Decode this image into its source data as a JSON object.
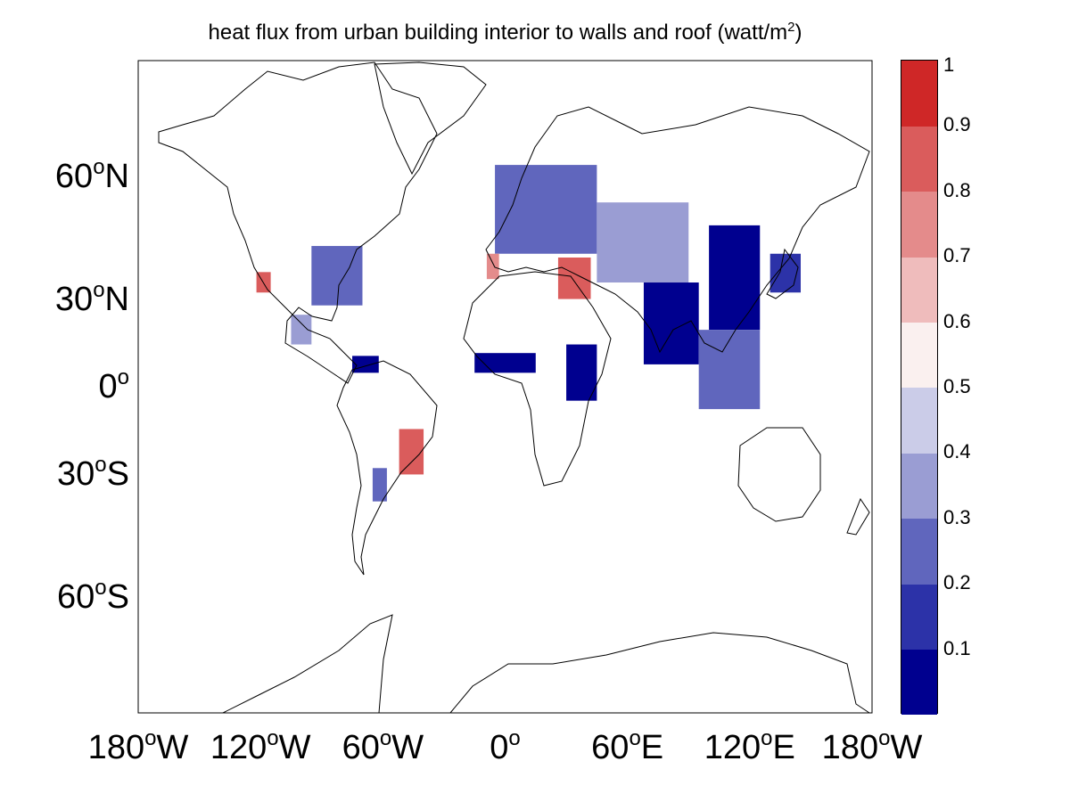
{
  "title": {
    "text": "heat flux from urban building interior to walls and roof (watt/m",
    "sup": "2",
    "close": ")"
  },
  "lat_ticks": [
    {
      "deg": "60",
      "sup": "o",
      "hem": "N",
      "lat": 60
    },
    {
      "deg": "30",
      "sup": "o",
      "hem": "N",
      "lat": 30
    },
    {
      "deg": "0",
      "sup": "o",
      "hem": "",
      "lat": 0
    },
    {
      "deg": "30",
      "sup": "o",
      "hem": "S",
      "lat": -30
    },
    {
      "deg": "60",
      "sup": "o",
      "hem": "S",
      "lat": -60
    }
  ],
  "lon_ticks": [
    {
      "deg": "180",
      "sup": "o",
      "hem": "W",
      "lon": -180
    },
    {
      "deg": "120",
      "sup": "o",
      "hem": "W",
      "lon": -120
    },
    {
      "deg": "60",
      "sup": "o",
      "hem": "W",
      "lon": -60
    },
    {
      "deg": "0",
      "sup": "o",
      "hem": "",
      "lon": 0
    },
    {
      "deg": "60",
      "sup": "o",
      "hem": "E",
      "lon": 60
    },
    {
      "deg": "120",
      "sup": "o",
      "hem": "E",
      "lon": 120
    },
    {
      "deg": "180",
      "sup": "o",
      "hem": "W",
      "lon": 180
    }
  ],
  "colorbar": {
    "min": 0,
    "max": 1,
    "tick_labels": [
      "0.1",
      "0.2",
      "0.3",
      "0.4",
      "0.5",
      "0.6",
      "0.7",
      "0.8",
      "0.9",
      "1"
    ],
    "colors": [
      "#00008f",
      "#2c32a8",
      "#6066bd",
      "#9a9dd3",
      "#cbcce8",
      "#faf0ef",
      "#efbcbc",
      "#e48b8b",
      "#da5c5c",
      "#cf2727"
    ]
  },
  "field_regions": [
    {
      "name": "eastern-us",
      "lon": [
        -95,
        -70
      ],
      "lat": [
        28,
        45
      ],
      "value": 0.25
    },
    {
      "name": "california",
      "lon": [
        -122,
        -115
      ],
      "lat": [
        32,
        38
      ],
      "value": 0.8
    },
    {
      "name": "mexico",
      "lon": [
        -105,
        -95
      ],
      "lat": [
        15,
        25
      ],
      "value": 0.3
    },
    {
      "name": "colombia-venezuela",
      "lon": [
        -75,
        -62
      ],
      "lat": [
        5,
        11
      ],
      "value": 0.05
    },
    {
      "name": "southeast-brazil",
      "lon": [
        -52,
        -40
      ],
      "lat": [
        -30,
        -15
      ],
      "value": 0.85
    },
    {
      "name": "argentina",
      "lon": [
        -65,
        -58
      ],
      "lat": [
        -38,
        -28
      ],
      "value": 0.25
    },
    {
      "name": "europe",
      "lon": [
        -5,
        45
      ],
      "lat": [
        43,
        62
      ],
      "value": 0.28
    },
    {
      "name": "iberia",
      "lon": [
        -9,
        -3
      ],
      "lat": [
        36,
        43
      ],
      "value": 0.75
    },
    {
      "name": "turkey-middle-east",
      "lon": [
        26,
        42
      ],
      "lat": [
        30,
        42
      ],
      "value": 0.85
    },
    {
      "name": "west-africa",
      "lon": [
        -15,
        15
      ],
      "lat": [
        5,
        12
      ],
      "value": 0.03
    },
    {
      "name": "east-africa",
      "lon": [
        30,
        45
      ],
      "lat": [
        -5,
        15
      ],
      "value": 0.05
    },
    {
      "name": "south-asia",
      "lon": [
        68,
        95
      ],
      "lat": [
        8,
        35
      ],
      "value": 0.02
    },
    {
      "name": "china",
      "lon": [
        100,
        125
      ],
      "lat": [
        20,
        50
      ],
      "value": 0.03
    },
    {
      "name": "japan",
      "lon": [
        130,
        145
      ],
      "lat": [
        32,
        43
      ],
      "value": 0.15
    },
    {
      "name": "southeast-asia",
      "lon": [
        95,
        125
      ],
      "lat": [
        -8,
        20
      ],
      "value": 0.2
    },
    {
      "name": "central-asia",
      "lon": [
        45,
        90
      ],
      "lat": [
        35,
        55
      ],
      "value": 0.3
    }
  ]
}
